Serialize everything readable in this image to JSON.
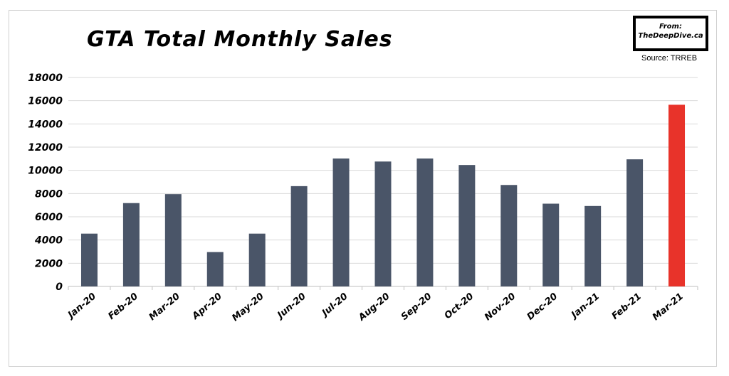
{
  "title": "GTA Total Monthly Sales",
  "credit": {
    "from": "From:",
    "site": "TheDeepDive.ca"
  },
  "source": "Source: TRREB",
  "colors": {
    "bar": "#4a5568",
    "highlight": "#e8332a",
    "grid": "#d9d9d9"
  },
  "chart_data": {
    "type": "bar",
    "title": "GTA Total Monthly Sales",
    "categories": [
      "Jan-20",
      "Feb-20",
      "Mar-20",
      "Apr-20",
      "May-20",
      "Jun-20",
      "Jul-20",
      "Aug-20",
      "Sep-20",
      "Oct-20",
      "Nov-20",
      "Dec-20",
      "Jan-21",
      "Feb-21",
      "Mar-21"
    ],
    "values": [
      4550,
      7180,
      7950,
      2960,
      4550,
      8640,
      11020,
      10760,
      11020,
      10460,
      8740,
      7130,
      6930,
      10950,
      15650
    ],
    "highlight_index": 14,
    "yticks": [
      0,
      2000,
      4000,
      6000,
      8000,
      10000,
      12000,
      14000,
      16000,
      18000
    ],
    "ylim": [
      0,
      18000
    ],
    "xlabel": "",
    "ylabel": "",
    "grid": true,
    "legend": "none"
  }
}
